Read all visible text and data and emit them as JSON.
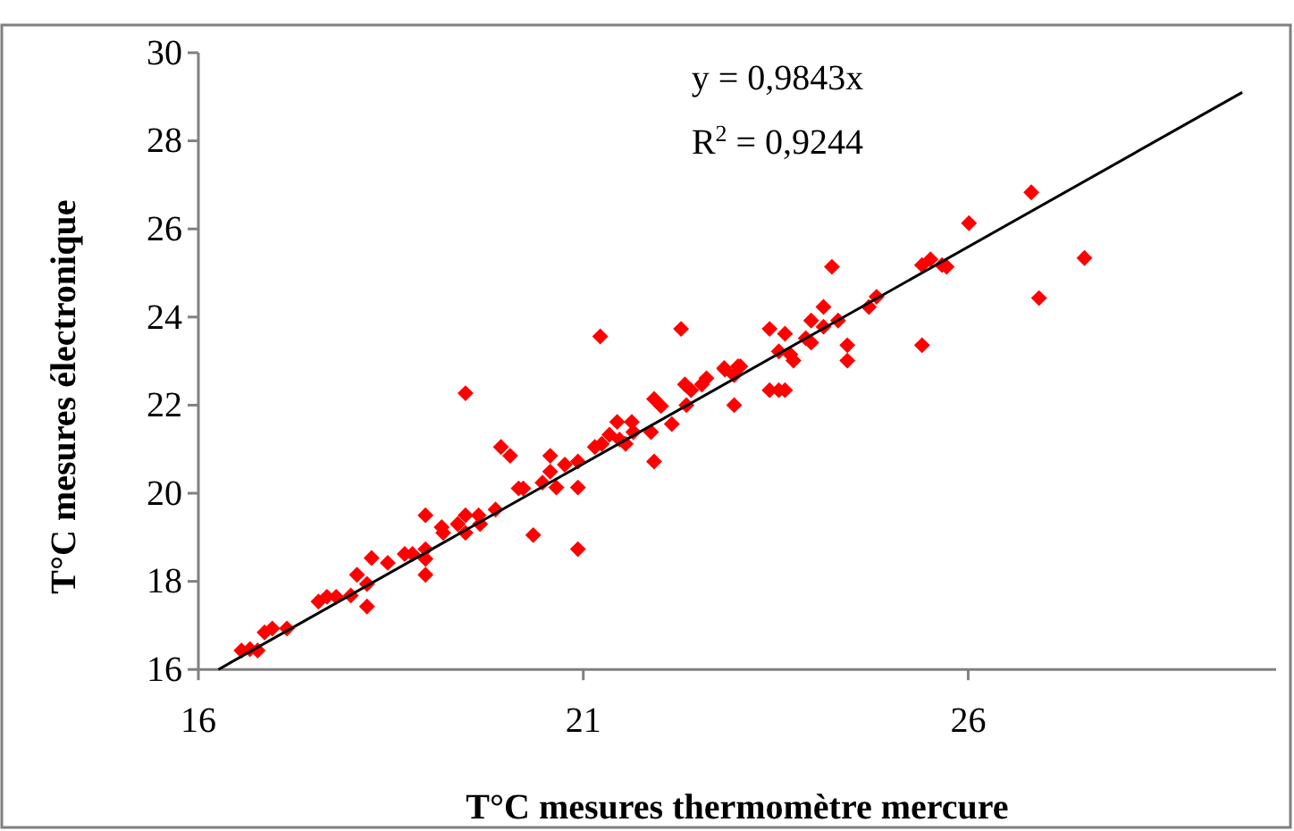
{
  "chart_data": {
    "type": "scatter",
    "xlabel": "T°C mesures thermomètre mercure",
    "ylabel": "T°C mesures électronique",
    "xlim": [
      16,
      30
    ],
    "xticks": [
      16,
      21,
      26
    ],
    "ylim": [
      16,
      30
    ],
    "yticks": [
      16,
      18,
      20,
      22,
      24,
      26,
      28,
      30
    ],
    "grid": false,
    "annotations": [
      "y = 0,9843x",
      "R$^{2}$ = 0,9244"
    ],
    "series": [
      {
        "marker": "diamond",
        "color": "#ff0000",
        "x": [
          16.56,
          16.67,
          16.77,
          16.86,
          16.96,
          17.15,
          17.56,
          17.67,
          17.79,
          17.98,
          18.06,
          18.19,
          18.19,
          18.25,
          18.46,
          18.68,
          18.78,
          18.95,
          18.95,
          18.95,
          18.95,
          19.16,
          19.18,
          19.37,
          19.47,
          19.47,
          19.47,
          19.64,
          19.66,
          19.86,
          19.93,
          20.05,
          20.16,
          20.22,
          20.35,
          20.47,
          20.57,
          20.57,
          20.65,
          20.76,
          20.93,
          20.93,
          20.93,
          21.15,
          21.22,
          21.24,
          21.34,
          21.44,
          21.47,
          21.55,
          21.63,
          21.65,
          21.88,
          21.92,
          21.92,
          22.01,
          22.15,
          22.27,
          22.32,
          22.34,
          22.4,
          22.54,
          22.6,
          22.83,
          22.96,
          23.01,
          22.84,
          22.96,
          23.04,
          23.42,
          23.42,
          23.54,
          23.62,
          23.54,
          23.62,
          23.69,
          23.73,
          23.89,
          23.96,
          23.96,
          24.12,
          24.12,
          24.23,
          24.31,
          24.43,
          24.43,
          24.71,
          24.81,
          25.4,
          25.4,
          25.51,
          25.66,
          25.72,
          26.01,
          26.82,
          26.92,
          27.51
        ],
        "values": [
          16.43,
          16.46,
          16.43,
          16.84,
          16.93,
          16.93,
          17.54,
          17.65,
          17.65,
          17.68,
          18.15,
          17.94,
          17.43,
          18.53,
          18.42,
          18.62,
          18.62,
          18.73,
          18.51,
          18.15,
          19.5,
          19.23,
          19.1,
          19.3,
          19.5,
          19.1,
          22.27,
          19.5,
          19.3,
          19.63,
          21.05,
          20.85,
          20.11,
          20.11,
          19.05,
          20.24,
          20.85,
          20.49,
          20.13,
          20.65,
          20.72,
          20.13,
          18.73,
          21.05,
          23.56,
          21.12,
          21.33,
          21.62,
          21.22,
          21.12,
          21.62,
          21.39,
          21.39,
          22.14,
          20.72,
          21.98,
          21.57,
          23.73,
          22.47,
          22.0,
          22.34,
          22.47,
          22.61,
          22.84,
          22.0,
          22.88,
          22.81,
          22.68,
          22.88,
          23.73,
          22.34,
          22.34,
          22.34,
          23.22,
          23.62,
          23.15,
          23.01,
          23.52,
          23.92,
          23.42,
          24.23,
          23.78,
          25.14,
          23.92,
          23.36,
          23.01,
          24.23,
          24.46,
          23.36,
          25.18,
          25.31,
          25.18,
          25.14,
          26.13,
          26.83,
          24.43,
          25.34
        ]
      },
      {
        "type": "line",
        "marker": "none",
        "color": "#000000",
        "x": [
          16.26,
          29.56
        ],
        "values": [
          16.0,
          29.1
        ]
      }
    ]
  }
}
